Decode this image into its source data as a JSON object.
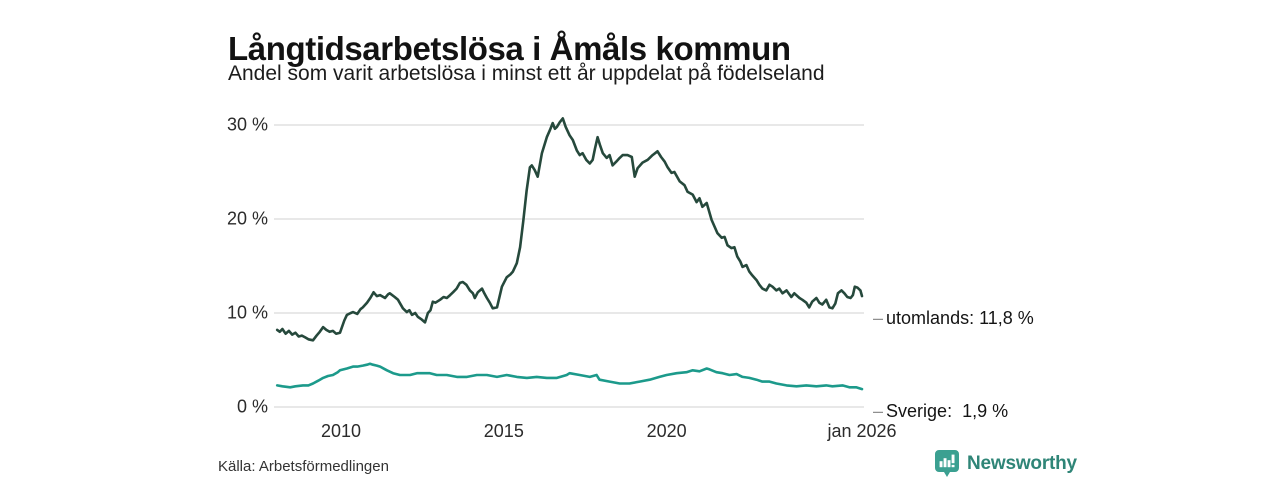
{
  "header": {
    "title": "Långtidsarbetslösa i Åmåls kommun",
    "subtitle": "Andel som varit arbetslösa i minst ett år uppdelat på födelseland"
  },
  "footer": {
    "source": "Källa: Arbetsförmedlingen",
    "brand": {
      "name": "Newsworthy",
      "icon": "newsworthy-bar-chart-bubble-icon",
      "text_color": "#2f8577",
      "icon_color": "#3ba091"
    }
  },
  "colors": {
    "grid": "#e1e1e1",
    "axis_text": "#2b2b2b",
    "label_dash": "#8f8f8f",
    "utomlands_line": "#26493c",
    "sverige_line": "#1c9a8b"
  },
  "chart_data": {
    "type": "line",
    "title": "Långtidsarbetslösa i Åmåls kommun",
    "subtitle": "Andel som varit arbetslösa i minst ett år uppdelat på födelseland",
    "grid": true,
    "legend_position": "end-of-line-labels",
    "x_axis": {
      "range": [
        2008.0,
        2026.0
      ],
      "ticks": [
        {
          "t": 2010,
          "label": "2010"
        },
        {
          "t": 2015,
          "label": "2015"
        },
        {
          "t": 2020,
          "label": "2020"
        },
        {
          "t": 2026,
          "label": "jan 2026"
        }
      ]
    },
    "y_axis": {
      "range": [
        0,
        31
      ],
      "unit": "%",
      "ticks": [
        {
          "v": 30,
          "label": "30 %"
        },
        {
          "v": 20,
          "label": "20 %"
        },
        {
          "v": 10,
          "label": "10 %"
        },
        {
          "v": 0,
          "label": "0 %"
        }
      ]
    },
    "series": [
      {
        "name": "utomlands",
        "color": "#26493c",
        "dash": "–",
        "end_label": "utomlands: 11,8 %",
        "end_value": 11.8,
        "points": [
          [
            2008.04,
            8.2
          ],
          [
            2008.12,
            8.0
          ],
          [
            2008.2,
            8.3
          ],
          [
            2008.3,
            7.8
          ],
          [
            2008.4,
            8.1
          ],
          [
            2008.5,
            7.7
          ],
          [
            2008.6,
            7.9
          ],
          [
            2008.7,
            7.5
          ],
          [
            2008.8,
            7.6
          ],
          [
            2008.9,
            7.4
          ],
          [
            2009.0,
            7.2
          ],
          [
            2009.14,
            7.1
          ],
          [
            2009.25,
            7.6
          ],
          [
            2009.35,
            8.0
          ],
          [
            2009.45,
            8.5
          ],
          [
            2009.55,
            8.2
          ],
          [
            2009.65,
            8.0
          ],
          [
            2009.75,
            8.1
          ],
          [
            2009.85,
            7.8
          ],
          [
            2009.97,
            7.9
          ],
          [
            2010.1,
            9.2
          ],
          [
            2010.18,
            9.8
          ],
          [
            2010.3,
            10.0
          ],
          [
            2010.37,
            10.1
          ],
          [
            2010.5,
            9.9
          ],
          [
            2010.6,
            10.4
          ],
          [
            2010.67,
            10.6
          ],
          [
            2010.8,
            11.1
          ],
          [
            2010.9,
            11.6
          ],
          [
            2011.0,
            12.2
          ],
          [
            2011.1,
            11.8
          ],
          [
            2011.2,
            11.9
          ],
          [
            2011.35,
            11.6
          ],
          [
            2011.45,
            12.0
          ],
          [
            2011.5,
            12.1
          ],
          [
            2011.65,
            11.7
          ],
          [
            2011.75,
            11.4
          ],
          [
            2011.9,
            10.5
          ],
          [
            2012.02,
            10.1
          ],
          [
            2012.1,
            10.3
          ],
          [
            2012.18,
            9.8
          ],
          [
            2012.28,
            10.0
          ],
          [
            2012.36,
            9.6
          ],
          [
            2012.48,
            9.3
          ],
          [
            2012.58,
            9.0
          ],
          [
            2012.67,
            10.0
          ],
          [
            2012.75,
            10.3
          ],
          [
            2012.82,
            11.2
          ],
          [
            2012.9,
            11.1
          ],
          [
            2013.04,
            11.4
          ],
          [
            2013.15,
            11.7
          ],
          [
            2013.25,
            11.6
          ],
          [
            2013.35,
            11.9
          ],
          [
            2013.44,
            12.2
          ],
          [
            2013.55,
            12.6
          ],
          [
            2013.65,
            13.2
          ],
          [
            2013.74,
            13.3
          ],
          [
            2013.85,
            13.0
          ],
          [
            2013.96,
            12.4
          ],
          [
            2014.05,
            12.1
          ],
          [
            2014.11,
            11.6
          ],
          [
            2014.2,
            12.2
          ],
          [
            2014.33,
            12.6
          ],
          [
            2014.4,
            12.1
          ],
          [
            2014.48,
            11.6
          ],
          [
            2014.57,
            11.1
          ],
          [
            2014.66,
            10.5
          ],
          [
            2014.79,
            10.6
          ],
          [
            2014.94,
            12.8
          ],
          [
            2015.09,
            13.8
          ],
          [
            2015.2,
            14.1
          ],
          [
            2015.28,
            14.4
          ],
          [
            2015.4,
            15.3
          ],
          [
            2015.5,
            17.0
          ],
          [
            2015.6,
            19.8
          ],
          [
            2015.7,
            23.0
          ],
          [
            2015.8,
            25.5
          ],
          [
            2015.86,
            25.7
          ],
          [
            2015.95,
            25.2
          ],
          [
            2016.04,
            24.5
          ],
          [
            2016.17,
            27.0
          ],
          [
            2016.32,
            28.7
          ],
          [
            2016.42,
            29.5
          ],
          [
            2016.5,
            30.2
          ],
          [
            2016.57,
            29.6
          ],
          [
            2016.63,
            29.8
          ],
          [
            2016.72,
            30.3
          ],
          [
            2016.81,
            30.7
          ],
          [
            2016.9,
            29.8
          ],
          [
            2017.02,
            28.9
          ],
          [
            2017.12,
            28.4
          ],
          [
            2017.24,
            27.3
          ],
          [
            2017.33,
            26.8
          ],
          [
            2017.42,
            27.0
          ],
          [
            2017.53,
            26.3
          ],
          [
            2017.64,
            25.9
          ],
          [
            2017.73,
            26.3
          ],
          [
            2017.8,
            27.5
          ],
          [
            2017.88,
            28.7
          ],
          [
            2017.96,
            27.8
          ],
          [
            2018.04,
            27.0
          ],
          [
            2018.16,
            26.5
          ],
          [
            2018.25,
            26.8
          ],
          [
            2018.34,
            25.7
          ],
          [
            2018.45,
            26.1
          ],
          [
            2018.56,
            26.5
          ],
          [
            2018.65,
            26.8
          ],
          [
            2018.8,
            26.8
          ],
          [
            2018.93,
            26.6
          ],
          [
            2019.02,
            24.5
          ],
          [
            2019.11,
            25.4
          ],
          [
            2019.26,
            26.0
          ],
          [
            2019.42,
            26.3
          ],
          [
            2019.57,
            26.8
          ],
          [
            2019.72,
            27.2
          ],
          [
            2019.83,
            26.6
          ],
          [
            2019.94,
            26.1
          ],
          [
            2020.03,
            25.5
          ],
          [
            2020.15,
            24.9
          ],
          [
            2020.24,
            25.0
          ],
          [
            2020.4,
            24.0
          ],
          [
            2020.55,
            23.6
          ],
          [
            2020.64,
            22.9
          ],
          [
            2020.8,
            22.6
          ],
          [
            2020.92,
            21.8
          ],
          [
            2021.01,
            22.2
          ],
          [
            2021.1,
            21.3
          ],
          [
            2021.23,
            21.7
          ],
          [
            2021.38,
            19.9
          ],
          [
            2021.47,
            19.2
          ],
          [
            2021.56,
            18.5
          ],
          [
            2021.69,
            18.0
          ],
          [
            2021.78,
            18.1
          ],
          [
            2021.87,
            17.2
          ],
          [
            2021.99,
            16.9
          ],
          [
            2022.08,
            17.0
          ],
          [
            2022.17,
            16.0
          ],
          [
            2022.26,
            15.5
          ],
          [
            2022.33,
            14.9
          ],
          [
            2022.45,
            15.1
          ],
          [
            2022.54,
            14.4
          ],
          [
            2022.63,
            14.0
          ],
          [
            2022.76,
            13.5
          ],
          [
            2022.85,
            13.0
          ],
          [
            2022.94,
            12.6
          ],
          [
            2023.06,
            12.4
          ],
          [
            2023.16,
            13.0
          ],
          [
            2023.25,
            12.8
          ],
          [
            2023.37,
            12.4
          ],
          [
            2023.46,
            12.6
          ],
          [
            2023.56,
            12.1
          ],
          [
            2023.68,
            12.4
          ],
          [
            2023.83,
            11.7
          ],
          [
            2023.92,
            12.1
          ],
          [
            2024.08,
            11.6
          ],
          [
            2024.17,
            11.4
          ],
          [
            2024.29,
            11.1
          ],
          [
            2024.38,
            10.6
          ],
          [
            2024.47,
            11.2
          ],
          [
            2024.6,
            11.6
          ],
          [
            2024.69,
            11.1
          ],
          [
            2024.78,
            10.9
          ],
          [
            2024.9,
            11.4
          ],
          [
            2025.0,
            10.6
          ],
          [
            2025.09,
            10.5
          ],
          [
            2025.18,
            11.0
          ],
          [
            2025.26,
            12.1
          ],
          [
            2025.37,
            12.4
          ],
          [
            2025.46,
            12.1
          ],
          [
            2025.55,
            11.7
          ],
          [
            2025.65,
            11.6
          ],
          [
            2025.72,
            11.9
          ],
          [
            2025.78,
            12.8
          ],
          [
            2025.86,
            12.7
          ],
          [
            2025.95,
            12.4
          ],
          [
            2026.0,
            11.8
          ]
        ]
      },
      {
        "name": "Sverige",
        "color": "#1c9a8b",
        "dash": "–",
        "end_label": "Sverige:  1,9 %",
        "end_value": 1.9,
        "points": [
          [
            2008.04,
            2.3
          ],
          [
            2008.2,
            2.2
          ],
          [
            2008.44,
            2.1
          ],
          [
            2008.6,
            2.2
          ],
          [
            2008.83,
            2.3
          ],
          [
            2009.0,
            2.3
          ],
          [
            2009.14,
            2.5
          ],
          [
            2009.3,
            2.8
          ],
          [
            2009.45,
            3.1
          ],
          [
            2009.6,
            3.3
          ],
          [
            2009.75,
            3.4
          ],
          [
            2009.9,
            3.7
          ],
          [
            2009.97,
            3.9
          ],
          [
            2010.18,
            4.1
          ],
          [
            2010.37,
            4.3
          ],
          [
            2010.5,
            4.3
          ],
          [
            2010.67,
            4.4
          ],
          [
            2010.8,
            4.5
          ],
          [
            2010.89,
            4.6
          ],
          [
            2010.98,
            4.5
          ],
          [
            2011.1,
            4.4
          ],
          [
            2011.2,
            4.3
          ],
          [
            2011.41,
            3.9
          ],
          [
            2011.6,
            3.6
          ],
          [
            2011.81,
            3.4
          ],
          [
            2012.0,
            3.4
          ],
          [
            2012.12,
            3.4
          ],
          [
            2012.33,
            3.6
          ],
          [
            2012.52,
            3.6
          ],
          [
            2012.73,
            3.6
          ],
          [
            2012.94,
            3.4
          ],
          [
            2013.25,
            3.4
          ],
          [
            2013.56,
            3.2
          ],
          [
            2013.87,
            3.2
          ],
          [
            2014.17,
            3.4
          ],
          [
            2014.48,
            3.4
          ],
          [
            2014.79,
            3.2
          ],
          [
            2015.09,
            3.4
          ],
          [
            2015.4,
            3.2
          ],
          [
            2015.71,
            3.1
          ],
          [
            2016.01,
            3.2
          ],
          [
            2016.32,
            3.1
          ],
          [
            2016.63,
            3.1
          ],
          [
            2016.93,
            3.4
          ],
          [
            2017.02,
            3.6
          ],
          [
            2017.33,
            3.4
          ],
          [
            2017.64,
            3.2
          ],
          [
            2017.85,
            3.4
          ],
          [
            2017.94,
            2.9
          ],
          [
            2018.25,
            2.7
          ],
          [
            2018.56,
            2.5
          ],
          [
            2018.86,
            2.5
          ],
          [
            2019.17,
            2.7
          ],
          [
            2019.48,
            2.9
          ],
          [
            2019.78,
            3.2
          ],
          [
            2020.0,
            3.4
          ],
          [
            2020.31,
            3.6
          ],
          [
            2020.61,
            3.7
          ],
          [
            2020.8,
            3.9
          ],
          [
            2021.01,
            3.8
          ],
          [
            2021.23,
            4.1
          ],
          [
            2021.32,
            4.0
          ],
          [
            2021.53,
            3.7
          ],
          [
            2021.72,
            3.6
          ],
          [
            2021.93,
            3.4
          ],
          [
            2022.15,
            3.5
          ],
          [
            2022.33,
            3.2
          ],
          [
            2022.54,
            3.1
          ],
          [
            2022.76,
            2.9
          ],
          [
            2022.94,
            2.7
          ],
          [
            2023.16,
            2.7
          ],
          [
            2023.37,
            2.5
          ],
          [
            2023.68,
            2.3
          ],
          [
            2023.99,
            2.2
          ],
          [
            2024.29,
            2.3
          ],
          [
            2024.6,
            2.2
          ],
          [
            2024.9,
            2.3
          ],
          [
            2025.09,
            2.2
          ],
          [
            2025.4,
            2.3
          ],
          [
            2025.61,
            2.1
          ],
          [
            2025.82,
            2.1
          ],
          [
            2026.0,
            1.9
          ]
        ]
      }
    ]
  }
}
